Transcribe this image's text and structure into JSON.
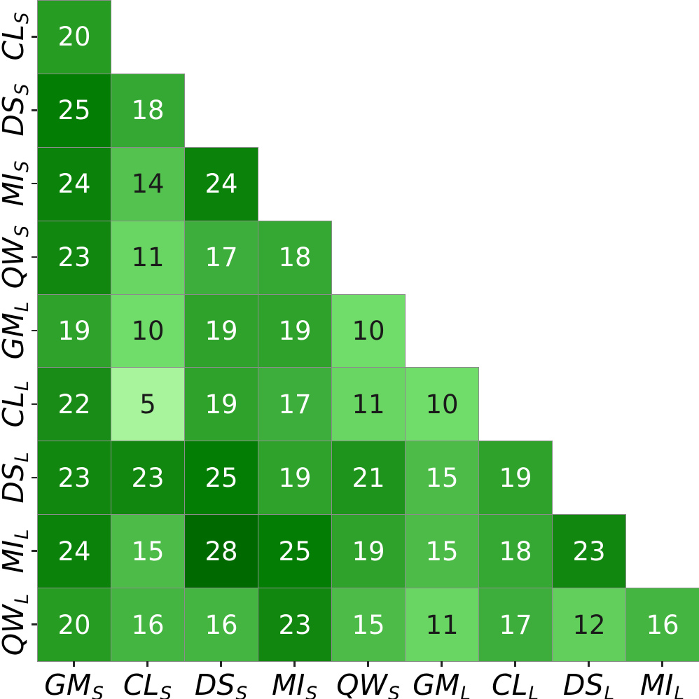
{
  "chart_data": {
    "type": "heatmap",
    "title": "",
    "xlabel": "",
    "ylabel": "",
    "shape": "lower-triangle",
    "x_categories": [
      "GM_S",
      "CL_S",
      "DS_S",
      "MI_S",
      "QW_S",
      "GM_L",
      "CL_L",
      "DS_L",
      "MI_L"
    ],
    "y_categories": [
      "CL_S",
      "DS_S",
      "MI_S",
      "QW_S",
      "GM_L",
      "CL_L",
      "DS_L",
      "MI_L",
      "QW_L"
    ],
    "values": [
      [
        20
      ],
      [
        25,
        18
      ],
      [
        24,
        14,
        24
      ],
      [
        23,
        11,
        17,
        18
      ],
      [
        19,
        10,
        19,
        19,
        10
      ],
      [
        22,
        5,
        19,
        17,
        11,
        10
      ],
      [
        23,
        23,
        25,
        19,
        21,
        15,
        19
      ],
      [
        24,
        15,
        28,
        25,
        19,
        15,
        18,
        23
      ],
      [
        20,
        16,
        16,
        23,
        15,
        11,
        17,
        12,
        16
      ]
    ],
    "value_range": [
      5,
      28
    ],
    "grid_line_color": "#8c8c8c",
    "background_color": "#ffffff",
    "tick_color": "#262626",
    "axis_label_color": "#000000",
    "annotation": {
      "dark_text_color": "#1a1a1a",
      "light_text_color": "#ffffff",
      "light_text_min_value": 15
    },
    "colormap": {
      "name": "light-green-to-dark-green",
      "anchors": [
        {
          "value": 5,
          "color": "#a8f49d"
        },
        {
          "value": 10,
          "color": "#70dc6a"
        },
        {
          "value": 15,
          "color": "#4cbb48"
        },
        {
          "value": 18,
          "color": "#35a834"
        },
        {
          "value": 20,
          "color": "#269c22"
        },
        {
          "value": 22,
          "color": "#188c16"
        },
        {
          "value": 25,
          "color": "#047d04"
        },
        {
          "value": 28,
          "color": "#006a00"
        }
      ]
    }
  }
}
